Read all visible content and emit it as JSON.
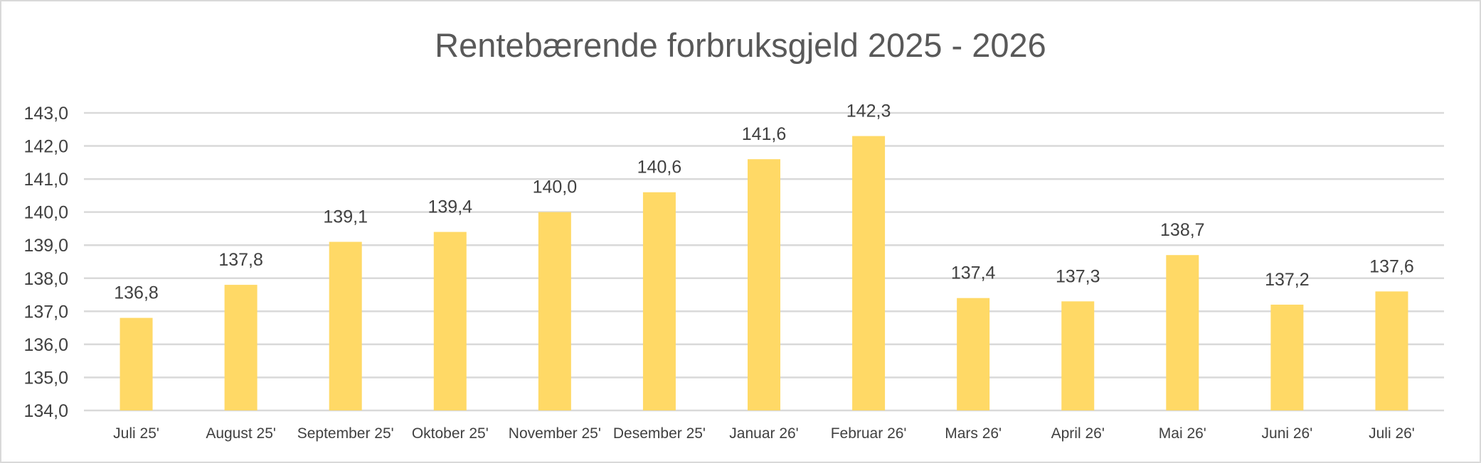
{
  "chart_data": {
    "type": "bar",
    "title": "Rentebærende forbruksgjeld 2025 - 2026",
    "xlabel": "",
    "ylabel": "",
    "categories": [
      "Juli 25'",
      "August 25'",
      "September 25'",
      "Oktober 25'",
      "November 25'",
      "Desember 25'",
      "Januar 26'",
      "Februar 26'",
      "Mars 26'",
      "April 26'",
      "Mai 26'",
      "Juni 26'",
      "Juli 26'"
    ],
    "values": [
      136.8,
      137.8,
      139.1,
      139.4,
      140.0,
      140.6,
      141.6,
      142.3,
      137.4,
      137.3,
      138.7,
      137.2,
      137.6
    ],
    "data_labels": [
      "136,8",
      "137,8",
      "139,1",
      "139,4",
      "140,0",
      "140,6",
      "141,6",
      "142,3",
      "137,4",
      "137,3",
      "138,7",
      "137,2",
      "137,6"
    ],
    "ylim": [
      134.0,
      143.0
    ],
    "yticks": [
      "134,0",
      "135,0",
      "136,0",
      "137,0",
      "138,0",
      "139,0",
      "140,0",
      "141,0",
      "142,0",
      "143,0"
    ],
    "grid": true,
    "legend": "none",
    "bar_color": "#ffd966",
    "grid_color": "#d9d9d9",
    "text_color": "#404040"
  }
}
